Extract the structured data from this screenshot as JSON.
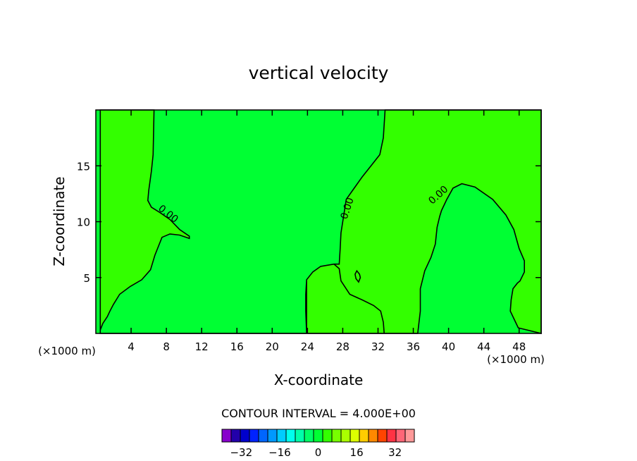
{
  "chart_data": {
    "type": "heatmap",
    "title": "vertical velocity",
    "xlabel": "X-coordinate",
    "ylabel": "Z-coordinate",
    "x_unit_label": "(×1000 m)",
    "z_unit_label": "(×1000 m)",
    "xlim": [
      0,
      50.5
    ],
    "ylim": [
      0,
      20
    ],
    "x_ticks": [
      4,
      8,
      12,
      16,
      20,
      24,
      28,
      32,
      36,
      40,
      44,
      48
    ],
    "y_ticks": [
      5,
      10,
      15
    ],
    "contour_interval_text": "CONTOUR INTERVAL = 4.000E+00",
    "contour_level_labels": [
      "0.00",
      "0.00",
      "0.00"
    ],
    "background_color": "#00ff33",
    "positive_region_color": "#33ff00",
    "colorbar": {
      "tick_labels": [
        "−32",
        "−16",
        "0",
        "16",
        "32"
      ],
      "tick_values": [
        -32,
        -16,
        0,
        16,
        32
      ],
      "range": [
        -40,
        40
      ],
      "colors": [
        "#8800cc",
        "#2200aa",
        "#0000cc",
        "#0022ff",
        "#0066ff",
        "#0099ff",
        "#00ccff",
        "#00ffee",
        "#00ffaa",
        "#00ff66",
        "#00ff33",
        "#33ff00",
        "#77ff00",
        "#aaff00",
        "#ddff00",
        "#ffcc00",
        "#ff8800",
        "#ff4400",
        "#ff3344",
        "#ff6677",
        "#ff9999"
      ]
    },
    "positive_regions": [
      [
        [
          6.6,
          20
        ],
        [
          6.5,
          16
        ],
        [
          6.3,
          14.5
        ],
        [
          6.0,
          12.8
        ],
        [
          5.9,
          11.9
        ],
        [
          6.3,
          11.3
        ],
        [
          7.3,
          10.8
        ],
        [
          8.4,
          10.2
        ],
        [
          9.5,
          9.3
        ],
        [
          10.6,
          8.7
        ],
        [
          10.6,
          8.5
        ],
        [
          9.5,
          8.8
        ],
        [
          8.4,
          8.9
        ],
        [
          7.5,
          8.6
        ],
        [
          6.7,
          7.0
        ],
        [
          6.2,
          5.7
        ],
        [
          5.2,
          4.8
        ],
        [
          3.9,
          4.2
        ],
        [
          2.7,
          3.5
        ],
        [
          2.0,
          2.6
        ],
        [
          1.6,
          2.0
        ],
        [
          1.3,
          1.5
        ],
        [
          0.8,
          0.9
        ],
        [
          0.5,
          0.3
        ],
        [
          0.5,
          0
        ],
        [
          32.7,
          0
        ],
        [
          32.6,
          1.0
        ],
        [
          32.3,
          2.0
        ],
        [
          31.5,
          2.5
        ],
        [
          30.2,
          3.0
        ],
        [
          28.8,
          3.5
        ],
        [
          27.8,
          4.7
        ],
        [
          27.6,
          5.8
        ],
        [
          27.0,
          6.2
        ],
        [
          25.5,
          6.0
        ],
        [
          24.6,
          5.5
        ],
        [
          23.9,
          4.8
        ],
        [
          23.8,
          3.5
        ],
        [
          23.8,
          2.0
        ],
        [
          23.9,
          0
        ],
        [
          36.5,
          0
        ],
        [
          36.8,
          2.0
        ],
        [
          36.8,
          4.0
        ],
        [
          37.3,
          5.6
        ],
        [
          38.0,
          6.8
        ],
        [
          38.5,
          8.0
        ],
        [
          38.7,
          9.5
        ],
        [
          39.0,
          10.5
        ],
        [
          39.2,
          11.0
        ],
        [
          39.8,
          12.0
        ],
        [
          40.5,
          13.0
        ],
        [
          41.5,
          13.4
        ],
        [
          43.0,
          13.1
        ],
        [
          45.0,
          12.0
        ],
        [
          46.5,
          10.6
        ],
        [
          47.4,
          9.3
        ],
        [
          48.0,
          7.6
        ],
        [
          48.6,
          6.5
        ],
        [
          48.6,
          5.5
        ],
        [
          48.1,
          4.7
        ],
        [
          47.8,
          4.5
        ],
        [
          47.3,
          4.0
        ],
        [
          47.1,
          3.0
        ],
        [
          47.0,
          2.0
        ],
        [
          47.6,
          1.0
        ],
        [
          47.9,
          0.5
        ],
        [
          50.5,
          0
        ],
        [
          50.5,
          20
        ],
        [
          32.8,
          20
        ],
        [
          32.6,
          17.5
        ],
        [
          32.2,
          16.0
        ],
        [
          31.2,
          15.0
        ],
        [
          30.2,
          14.0
        ],
        [
          29.3,
          13.0
        ],
        [
          28.4,
          12.0
        ],
        [
          28.2,
          11.0
        ],
        [
          28.0,
          10.0
        ],
        [
          27.8,
          9.0
        ],
        [
          27.7,
          7.5
        ],
        [
          27.6,
          6.2
        ],
        [
          27.0,
          6.2
        ],
        [
          25.5,
          6.0
        ],
        [
          24.6,
          5.5
        ],
        [
          23.9,
          4.8
        ],
        [
          23.9,
          0
        ],
        [
          0.5,
          0
        ],
        [
          0.5,
          20
        ]
      ]
    ],
    "closed_contours": [
      [
        [
          29.6,
          5.6
        ],
        [
          29.9,
          5.3
        ],
        [
          30.0,
          5.0
        ],
        [
          29.8,
          4.6
        ],
        [
          29.5,
          4.9
        ],
        [
          29.4,
          5.3
        ]
      ]
    ]
  }
}
